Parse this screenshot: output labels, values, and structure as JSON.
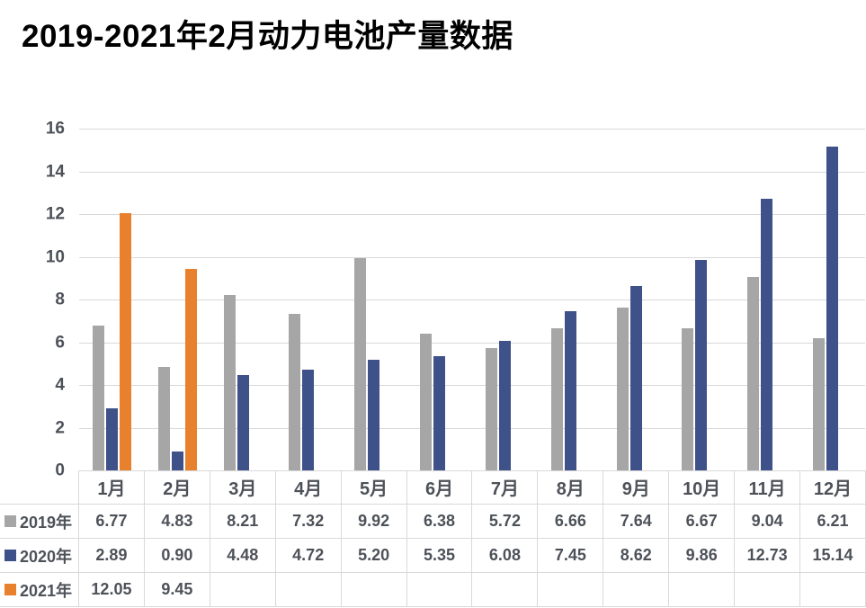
{
  "chart_data": {
    "type": "bar",
    "title": "2019-2021年2月动力电池产量数据",
    "categories": [
      "1月",
      "2月",
      "3月",
      "4月",
      "5月",
      "6月",
      "7月",
      "8月",
      "9月",
      "10月",
      "11月",
      "12月"
    ],
    "series": [
      {
        "name": "2019年",
        "color": "#A6A6A6",
        "values": [
          6.77,
          4.83,
          8.21,
          7.32,
          9.92,
          6.38,
          5.72,
          6.66,
          7.64,
          6.67,
          9.04,
          6.21
        ]
      },
      {
        "name": "2020年",
        "color": "#3F5189",
        "values": [
          2.89,
          0.9,
          4.48,
          4.72,
          5.2,
          5.35,
          6.08,
          7.45,
          8.62,
          9.86,
          12.73,
          15.14
        ]
      },
      {
        "name": "2021年",
        "color": "#E8812E",
        "values": [
          12.05,
          9.45,
          null,
          null,
          null,
          null,
          null,
          null,
          null,
          null,
          null,
          null
        ]
      }
    ],
    "xlabel": "",
    "ylabel": "",
    "ylim": [
      0,
      16
    ],
    "ytick_step": 2,
    "grid": true,
    "gridline_color": "#D9D9D9",
    "axis_text_color": "#4D5259",
    "legend_position": "table-rows-left",
    "value_decimals": 2
  }
}
